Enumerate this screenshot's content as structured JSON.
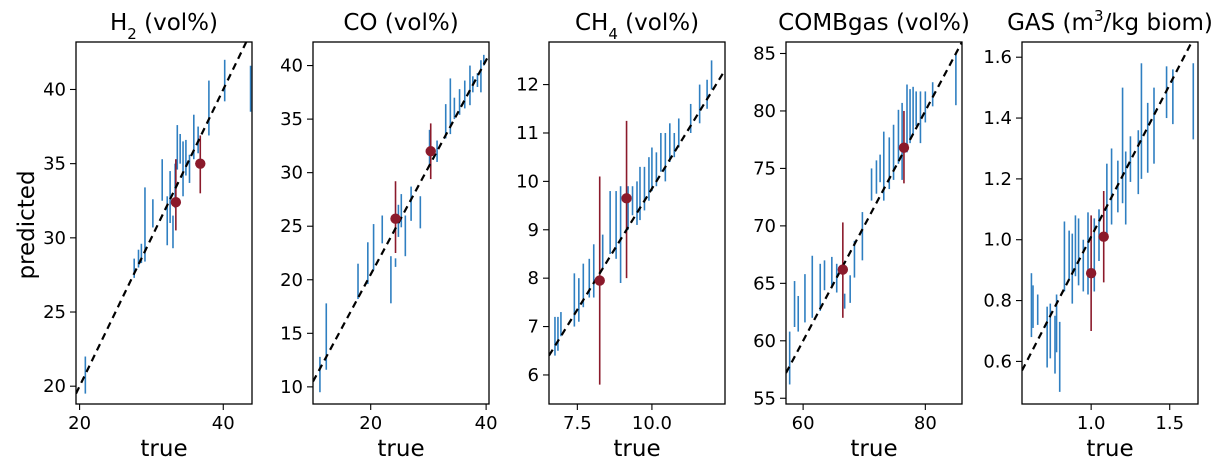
{
  "figure": {
    "ylabel": "predicted"
  },
  "chart_data": [
    {
      "type": "scatter",
      "title": "H₂ (vol%)",
      "title_parts": [
        {
          "t": "H"
        },
        {
          "t": "2",
          "sub": true
        },
        {
          "t": " (vol%)"
        }
      ],
      "xlabel": "true",
      "ylabel": "predicted",
      "xlim": [
        19.5,
        44
      ],
      "ylim": [
        18.8,
        43.2
      ],
      "xticks": [
        20,
        40
      ],
      "yticks": [
        20,
        25,
        30,
        35,
        40
      ],
      "ref_line": [
        [
          19.5,
          19.5
        ],
        [
          44,
          44
        ]
      ],
      "series": [
        {
          "role": "train",
          "color": "#2f7fc1",
          "x": [
            20.8,
            27.6,
            28.2,
            28.6,
            29.1,
            30.2,
            31.5,
            32.2,
            32.6,
            33.0,
            33.3,
            33.6,
            34.0,
            34.4,
            34.8,
            35.3,
            35.9,
            36.5,
            38.0,
            40.2,
            43.8
          ],
          "y_low": [
            19.5,
            27.3,
            28.0,
            28.3,
            28.4,
            30.7,
            32.5,
            29.5,
            31.0,
            29.3,
            32.0,
            34.6,
            35.0,
            32.8,
            34.2,
            33.7,
            35.3,
            35.7,
            36.9,
            39.2,
            38.5
          ],
          "y_high": [
            22.0,
            28.6,
            29.2,
            29.6,
            33.4,
            32.6,
            35.3,
            32.8,
            34.5,
            31.5,
            35.0,
            37.6,
            37.0,
            36.5,
            36.6,
            35.6,
            38.3,
            37.5,
            40.6,
            42.0,
            41.6
          ]
        },
        {
          "role": "test",
          "color": "#8b1a2b",
          "x": [
            33.4,
            36.8
          ],
          "y": [
            32.4,
            35.0
          ],
          "y_low": [
            30.5,
            33.0
          ],
          "y_high": [
            35.3,
            36.9
          ]
        }
      ]
    },
    {
      "type": "scatter",
      "title": "CO (vol%)",
      "title_parts": [
        {
          "t": "CO (vol%)"
        }
      ],
      "xlabel": "true",
      "ylabel": "",
      "xlim": [
        10,
        40.5
      ],
      "ylim": [
        8.4,
        42.2
      ],
      "xticks": [
        20,
        40
      ],
      "yticks": [
        10,
        15,
        20,
        25,
        30,
        35,
        40
      ],
      "ref_line": [
        [
          10,
          10.5
        ],
        [
          40.5,
          41
        ]
      ],
      "series": [
        {
          "role": "train",
          "color": "#2f7fc1",
          "x": [
            11.2,
            12.3,
            17.8,
            19.5,
            20.5,
            22.0,
            23.5,
            24.3,
            24.8,
            25.3,
            26.0,
            27.0,
            28.6,
            30.2,
            31.5,
            33.0,
            33.8,
            34.5,
            35.4,
            36.3,
            37.2,
            37.7,
            38.5,
            39.1,
            39.6
          ],
          "y_low": [
            9.5,
            11.6,
            18.2,
            19.6,
            20.9,
            23.4,
            17.8,
            21.2,
            24.0,
            24.9,
            22.2,
            25.5,
            24.8,
            30.8,
            31.0,
            33.2,
            33.6,
            35.0,
            35.4,
            36.0,
            36.3,
            37.5,
            38.0,
            37.5,
            40.0
          ],
          "y_high": [
            12.8,
            17.8,
            21.5,
            23.5,
            25.2,
            26.0,
            22.2,
            22.0,
            27.0,
            28.0,
            26.0,
            28.7,
            27.8,
            34.0,
            33.0,
            36.4,
            38.8,
            37.0,
            37.8,
            38.6,
            40.0,
            39.0,
            39.3,
            40.5,
            41.0
          ]
        },
        {
          "role": "test",
          "color": "#8b1a2b",
          "x": [
            24.3,
            30.4
          ],
          "y": [
            25.7,
            32.0
          ],
          "y_low": [
            22.5,
            29.4
          ],
          "y_high": [
            29.2,
            34.6
          ]
        }
      ]
    },
    {
      "type": "scatter",
      "title": "CH₄ (vol%)",
      "title_parts": [
        {
          "t": "CH"
        },
        {
          "t": "4",
          "sub": true
        },
        {
          "t": " (vol%)"
        }
      ],
      "xlabel": "true",
      "ylabel": "",
      "xlim": [
        6.55,
        12.45
      ],
      "ylim": [
        5.4,
        12.88
      ],
      "xticks": [
        7.5,
        10.0
      ],
      "yticks": [
        6,
        7,
        8,
        9,
        10,
        11,
        12
      ],
      "ref_line": [
        [
          6.55,
          6.4
        ],
        [
          12.45,
          12.3
        ]
      ],
      "series": [
        {
          "role": "train",
          "color": "#2f7fc1",
          "x": [
            6.75,
            6.85,
            6.95,
            7.4,
            7.55,
            7.7,
            7.9,
            8.05,
            8.35,
            8.6,
            8.8,
            8.95,
            9.2,
            9.35,
            9.5,
            9.6,
            9.75,
            9.9,
            10.0,
            10.15,
            10.3,
            10.45,
            10.6,
            10.75,
            10.9,
            11.3,
            11.6,
            11.85,
            12.0
          ],
          "y_low": [
            6.4,
            6.5,
            6.8,
            7.0,
            7.1,
            7.4,
            7.6,
            7.6,
            8.2,
            8.5,
            8.4,
            7.9,
            9.0,
            9.3,
            9.1,
            9.2,
            9.4,
            9.6,
            9.8,
            9.9,
            10.2,
            10.0,
            10.4,
            10.5,
            10.7,
            11.0,
            11.2,
            11.5,
            11.9
          ],
          "y_high": [
            7.2,
            7.2,
            7.3,
            8.1,
            8.0,
            8.3,
            8.4,
            8.7,
            8.9,
            9.8,
            9.8,
            9.9,
            9.9,
            9.9,
            10.0,
            10.3,
            10.3,
            10.5,
            10.7,
            10.6,
            11.0,
            11.0,
            11.2,
            11.0,
            11.3,
            11.6,
            12.0,
            12.1,
            12.5
          ]
        },
        {
          "role": "test",
          "color": "#8b1a2b",
          "x": [
            8.25,
            9.15
          ],
          "y": [
            7.95,
            9.65
          ],
          "y_low": [
            5.8,
            8.0
          ],
          "y_high": [
            10.1,
            11.25
          ]
        }
      ]
    },
    {
      "type": "scatter",
      "title": "COMBgas (vol%)",
      "title_parts": [
        {
          "t": "COMBgas (vol%)"
        }
      ],
      "xlabel": "true",
      "ylabel": "",
      "xlim": [
        57.2,
        86.0
      ],
      "ylim": [
        54.5,
        86.0
      ],
      "xticks": [
        60,
        80
      ],
      "yticks": [
        55,
        60,
        65,
        70,
        75,
        80,
        85
      ],
      "ref_line": [
        [
          57.2,
          57.2
        ],
        [
          86.0,
          86.0
        ]
      ],
      "series": [
        {
          "role": "train",
          "color": "#2f7fc1",
          "x": [
            57.8,
            58.6,
            59.2,
            60.3,
            61.5,
            62.8,
            63.5,
            64.7,
            65.5,
            66.8,
            67.7,
            68.4,
            69.7,
            71.2,
            72.0,
            72.6,
            73.2,
            74.1,
            74.8,
            75.6,
            76.2,
            77.0,
            77.5,
            78.0,
            78.5,
            79.2,
            80.0,
            81.2,
            85.0
          ],
          "y_low": [
            56.2,
            61.2,
            60.8,
            61.6,
            62.0,
            62.6,
            64.4,
            64.6,
            64.2,
            62.8,
            63.3,
            65.5,
            67.0,
            72.2,
            72.8,
            73.8,
            72.2,
            73.2,
            74.0,
            75.4,
            74.0,
            76.4,
            77.2,
            78.0,
            78.7,
            77.2,
            79.0,
            80.4,
            80.5
          ],
          "y_high": [
            60.8,
            65.2,
            63.9,
            65.8,
            67.4,
            66.7,
            67.0,
            67.3,
            66.7,
            64.1,
            65.7,
            68.7,
            71.2,
            75.0,
            75.7,
            76.2,
            78.2,
            77.7,
            78.8,
            80.1,
            80.7,
            82.3,
            81.9,
            82.1,
            81.7,
            81.7,
            81.7,
            82.5,
            85.0
          ]
        },
        {
          "role": "test",
          "color": "#8b1a2b",
          "x": [
            66.5,
            76.5
          ],
          "y": [
            66.2,
            76.8
          ],
          "y_low": [
            62.0,
            73.7
          ],
          "y_high": [
            70.3,
            80.0
          ]
        }
      ]
    },
    {
      "type": "scatter",
      "title": "GAS (m³/kg biom)",
      "title_parts": [
        {
          "t": "GAS (m"
        },
        {
          "t": "3",
          "sup": true
        },
        {
          "t": "/kg biom)"
        }
      ],
      "xlabel": "true",
      "ylabel": "",
      "xlim": [
        0.56,
        1.68
      ],
      "ylim": [
        0.46,
        1.65
      ],
      "xticks": [
        1.0,
        1.5
      ],
      "yticks": [
        0.6,
        0.8,
        1.0,
        1.2,
        1.4,
        1.6
      ],
      "ref_line": [
        [
          0.56,
          0.57
        ],
        [
          1.68,
          1.69
        ]
      ],
      "series": [
        {
          "role": "train",
          "color": "#2f7fc1",
          "x": [
            0.62,
            0.63,
            0.66,
            0.72,
            0.74,
            0.77,
            0.78,
            0.8,
            0.83,
            0.86,
            0.88,
            0.9,
            0.92,
            0.95,
            0.98,
            1.02,
            1.05,
            1.1,
            1.13,
            1.17,
            1.2,
            1.22,
            1.25,
            1.3,
            1.32,
            1.36,
            1.4,
            1.48,
            1.52,
            1.65
          ],
          "y_low": [
            0.68,
            0.71,
            0.72,
            0.58,
            0.61,
            0.56,
            0.63,
            0.5,
            0.83,
            0.87,
            0.79,
            0.88,
            0.85,
            0.83,
            0.82,
            0.83,
            0.93,
            1.0,
            1.05,
            1.09,
            1.12,
            1.05,
            1.19,
            1.15,
            1.2,
            1.22,
            1.25,
            1.4,
            1.38,
            1.33
          ],
          "y_high": [
            0.89,
            0.85,
            0.82,
            0.78,
            0.79,
            0.75,
            0.82,
            0.73,
            1.06,
            1.03,
            1.02,
            1.08,
            1.07,
            1.0,
            1.09,
            1.07,
            1.1,
            1.25,
            1.3,
            1.26,
            1.5,
            1.29,
            1.34,
            1.36,
            1.58,
            1.45,
            1.5,
            1.57,
            1.56,
            1.58
          ]
        },
        {
          "role": "test",
          "color": "#8b1a2b",
          "x": [
            1.0,
            1.08
          ],
          "y": [
            0.89,
            1.01
          ],
          "y_low": [
            0.7,
            0.86
          ],
          "y_high": [
            1.08,
            1.16
          ]
        }
      ]
    }
  ]
}
